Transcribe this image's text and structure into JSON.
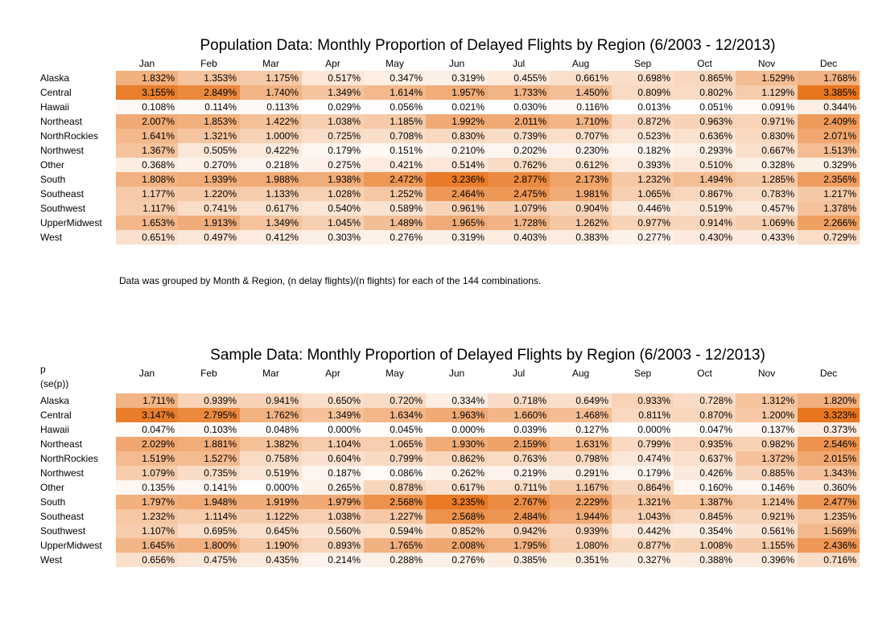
{
  "chart_data": [
    {
      "type": "heatmap",
      "title": "Population Data: Monthly Proportion of Delayed Flights by Region (6/2003 - 12/2013)",
      "columns": [
        "Jan",
        "Feb",
        "Mar",
        "Apr",
        "May",
        "Jun",
        "Jul",
        "Aug",
        "Sep",
        "Oct",
        "Nov",
        "Dec"
      ],
      "rows": [
        {
          "region": "Alaska",
          "values": [
            "1.832%",
            "1.353%",
            "1.175%",
            "0.517%",
            "0.347%",
            "0.319%",
            "0.455%",
            "0.661%",
            "0.698%",
            "0.865%",
            "1.529%",
            "1.768%"
          ]
        },
        {
          "region": "Central",
          "values": [
            "3.155%",
            "2.849%",
            "1.740%",
            "1.349%",
            "1.614%",
            "1.957%",
            "1.733%",
            "1.450%",
            "0.809%",
            "0.802%",
            "1.129%",
            "3.385%"
          ]
        },
        {
          "region": "Hawaii",
          "values": [
            "0.108%",
            "0.114%",
            "0.113%",
            "0.029%",
            "0.056%",
            "0.021%",
            "0.030%",
            "0.116%",
            "0.013%",
            "0.051%",
            "0.091%",
            "0.344%"
          ]
        },
        {
          "region": "Northeast",
          "values": [
            "2.007%",
            "1.853%",
            "1.422%",
            "1.038%",
            "1.185%",
            "1.992%",
            "2.011%",
            "1.710%",
            "0.872%",
            "0.963%",
            "0.971%",
            "2.409%"
          ]
        },
        {
          "region": "NorthRockies",
          "values": [
            "1.641%",
            "1.321%",
            "1.000%",
            "0.725%",
            "0.708%",
            "0.830%",
            "0.739%",
            "0.707%",
            "0.523%",
            "0.636%",
            "0.830%",
            "2.071%"
          ]
        },
        {
          "region": "Northwest",
          "values": [
            "1.367%",
            "0.505%",
            "0.422%",
            "0.179%",
            "0.151%",
            "0.210%",
            "0.202%",
            "0.230%",
            "0.182%",
            "0.293%",
            "0.667%",
            "1.513%"
          ]
        },
        {
          "region": "Other",
          "values": [
            "0.368%",
            "0.270%",
            "0.218%",
            "0.275%",
            "0.421%",
            "0.514%",
            "0.762%",
            "0.612%",
            "0.393%",
            "0.510%",
            "0.328%",
            "0.329%"
          ]
        },
        {
          "region": "South",
          "values": [
            "1.808%",
            "1.939%",
            "1.988%",
            "1.938%",
            "2.472%",
            "3.236%",
            "2.877%",
            "2.173%",
            "1.232%",
            "1.494%",
            "1.285%",
            "2.356%"
          ]
        },
        {
          "region": "Southeast",
          "values": [
            "1.177%",
            "1.220%",
            "1.133%",
            "1.028%",
            "1.252%",
            "2.464%",
            "2.475%",
            "1.981%",
            "1.065%",
            "0.867%",
            "0.783%",
            "1.217%"
          ]
        },
        {
          "region": "Southwest",
          "values": [
            "1.117%",
            "0.741%",
            "0.617%",
            "0.540%",
            "0.589%",
            "0.961%",
            "1.079%",
            "0.904%",
            "0.446%",
            "0.519%",
            "0.457%",
            "1.378%"
          ]
        },
        {
          "region": "UpperMidwest",
          "values": [
            "1.653%",
            "1.913%",
            "1.349%",
            "1.045%",
            "1.489%",
            "1.965%",
            "1.728%",
            "1.262%",
            "0.977%",
            "0.914%",
            "1.069%",
            "2.266%"
          ]
        },
        {
          "region": "West",
          "values": [
            "0.651%",
            "0.497%",
            "0.412%",
            "0.303%",
            "0.276%",
            "0.319%",
            "0.403%",
            "0.383%",
            "0.277%",
            "0.430%",
            "0.433%",
            "0.729%"
          ]
        }
      ],
      "color_low": "#ffffff",
      "color_high": "#e8761f"
    },
    {
      "type": "heatmap",
      "title": "Sample Data: Monthly Proportion of Delayed Flights by Region (6/2003 - 12/2013)",
      "columns": [
        "Jan",
        "Feb",
        "Mar",
        "Apr",
        "May",
        "Jun",
        "Jul",
        "Aug",
        "Sep",
        "Oct",
        "Nov",
        "Dec"
      ],
      "rows": [
        {
          "region": "Alaska",
          "values": [
            "1.711%",
            "0.939%",
            "0.941%",
            "0.650%",
            "0.720%",
            "0.334%",
            "0.718%",
            "0.649%",
            "0.933%",
            "0.728%",
            "1.312%",
            "1.820%"
          ]
        },
        {
          "region": "Central",
          "values": [
            "3.147%",
            "2.795%",
            "1.762%",
            "1.349%",
            "1.634%",
            "1.963%",
            "1.660%",
            "1.468%",
            "0.811%",
            "0.870%",
            "1.200%",
            "3.323%"
          ]
        },
        {
          "region": "Hawaii",
          "values": [
            "0.047%",
            "0.103%",
            "0.048%",
            "0.000%",
            "0.045%",
            "0.000%",
            "0.039%",
            "0.127%",
            "0.000%",
            "0.047%",
            "0.137%",
            "0.373%"
          ]
        },
        {
          "region": "Northeast",
          "values": [
            "2.029%",
            "1.881%",
            "1.382%",
            "1.104%",
            "1.065%",
            "1.930%",
            "2.159%",
            "1.631%",
            "0.799%",
            "0.935%",
            "0.982%",
            "2.546%"
          ]
        },
        {
          "region": "NorthRockies",
          "values": [
            "1.519%",
            "1.527%",
            "0.758%",
            "0.604%",
            "0.799%",
            "0.862%",
            "0.763%",
            "0.798%",
            "0.474%",
            "0.637%",
            "1.372%",
            "2.015%"
          ]
        },
        {
          "region": "Northwest",
          "values": [
            "1.079%",
            "0.735%",
            "0.519%",
            "0.187%",
            "0.086%",
            "0.262%",
            "0.219%",
            "0.291%",
            "0.179%",
            "0.426%",
            "0.885%",
            "1.343%"
          ]
        },
        {
          "region": "Other",
          "values": [
            "0.135%",
            "0.141%",
            "0.000%",
            "0.265%",
            "0.878%",
            "0.617%",
            "0.711%",
            "1.167%",
            "0.864%",
            "0.160%",
            "0.146%",
            "0.360%"
          ]
        },
        {
          "region": "South",
          "values": [
            "1.797%",
            "1.948%",
            "1.919%",
            "1.979%",
            "2.568%",
            "3.235%",
            "2.767%",
            "2.229%",
            "1.321%",
            "1.387%",
            "1.214%",
            "2.477%"
          ]
        },
        {
          "region": "Southeast",
          "values": [
            "1.232%",
            "1.114%",
            "1.122%",
            "1.038%",
            "1.227%",
            "2.568%",
            "2.484%",
            "1.944%",
            "1.043%",
            "0.845%",
            "0.921%",
            "1.235%"
          ]
        },
        {
          "region": "Southwest",
          "values": [
            "1.107%",
            "0.695%",
            "0.645%",
            "0.560%",
            "0.594%",
            "0.852%",
            "0.942%",
            "0.939%",
            "0.442%",
            "0.354%",
            "0.561%",
            "1.569%"
          ]
        },
        {
          "region": "UpperMidwest",
          "values": [
            "1.645%",
            "1.800%",
            "1.190%",
            "0.893%",
            "1.765%",
            "2.008%",
            "1.795%",
            "1.080%",
            "0.877%",
            "1.008%",
            "1.155%",
            "2.436%"
          ]
        },
        {
          "region": "West",
          "values": [
            "0.656%",
            "0.475%",
            "0.435%",
            "0.214%",
            "0.288%",
            "0.276%",
            "0.385%",
            "0.351%",
            "0.327%",
            "0.388%",
            "0.396%",
            "0.716%"
          ]
        }
      ],
      "color_low": "#ffffff",
      "color_high": "#e8761f"
    }
  ],
  "note": "Data was grouped by Month & Region, (n delay flights)/(n flights) for each of the 144 combinations.",
  "sample_labels": {
    "p": "p",
    "sep": "(se(p))"
  }
}
